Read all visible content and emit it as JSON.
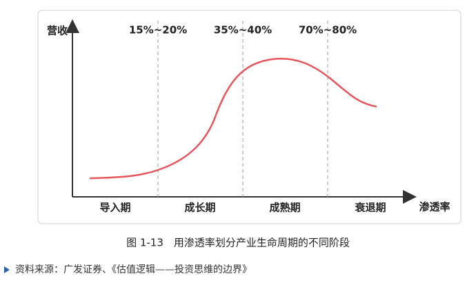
{
  "diagram": {
    "y_label": "营收",
    "x_label": "渗透率",
    "thresholds": [
      "15%~20%",
      "35%~40%",
      "70%~80%"
    ],
    "stages": [
      "导入期",
      "成长期",
      "成熟期",
      "衰退期"
    ]
  },
  "caption": "图 1-13　用渗透率划分产业生命周期的不同阶段",
  "source": "资料来源：广发证券、《估值逻辑——投资思维的边界》"
}
